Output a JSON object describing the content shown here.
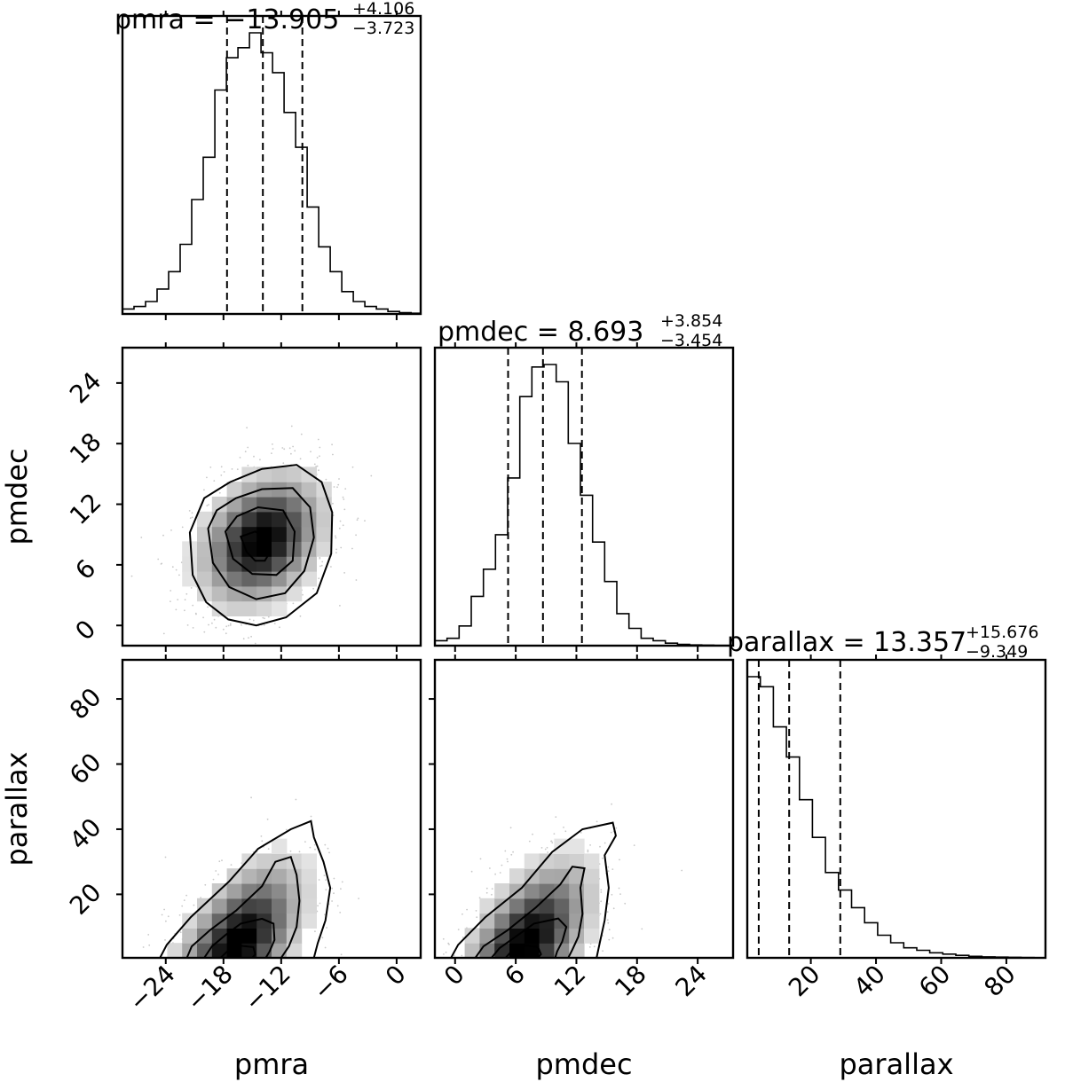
{
  "chart_data": {
    "type": "corner",
    "parameters": [
      "pmra",
      "pmdec",
      "parallax"
    ],
    "axis_labels": {
      "pmra": "pmra",
      "pmdec": "pmdec",
      "parallax": "parallax"
    },
    "ranges": {
      "pmra": [
        -28.5,
        2.5
      ],
      "pmdec": [
        -2.0,
        27.5
      ],
      "parallax": [
        0.5,
        92.0
      ]
    },
    "ticks": {
      "pmra": [
        -24,
        -18,
        -12,
        -6,
        0
      ],
      "pmdec": [
        0,
        6,
        12,
        18,
        24
      ],
      "parallax_x": [
        20,
        40,
        60,
        80
      ],
      "parallax_y": [
        20,
        40,
        60,
        80
      ]
    },
    "tick_labels": {
      "pmra": [
        "−24",
        "−18",
        "−12",
        "−6",
        "0"
      ],
      "pmdec": [
        "0",
        "6",
        "12",
        "18",
        "24"
      ],
      "parallax": [
        "20",
        "40",
        "60",
        "80"
      ]
    },
    "titles": {
      "pmra": {
        "main": "pmra = −13.905",
        "plus": "+4.106",
        "minus": "−3.723"
      },
      "pmdec": {
        "main": "pmdec = 8.693",
        "plus": "+3.854",
        "minus": "−3.454"
      },
      "parallax": {
        "main": "parallax = 13.357",
        "plus": "+15.676",
        "minus": "−9.349"
      }
    },
    "quantiles": {
      "pmra": [
        -17.628,
        -13.905,
        -9.799
      ],
      "pmdec": [
        5.239,
        8.693,
        12.547
      ],
      "parallax": [
        4.008,
        13.357,
        29.033
      ]
    },
    "histograms": {
      "pmra": {
        "edges": [
          -28.5,
          -27.3,
          -26.1,
          -24.9,
          -23.7,
          -22.5,
          -21.3,
          -20.1,
          -18.9,
          -17.7,
          -16.5,
          -15.3,
          -14.1,
          -12.9,
          -11.7,
          -10.5,
          -9.3,
          -8.1,
          -6.9,
          -5.7,
          -4.5,
          -3.3,
          -2.1,
          -0.9,
          0.3,
          1.5,
          2.5
        ],
        "counts": [
          2,
          3,
          5,
          10,
          17,
          28,
          46,
          63,
          90,
          103,
          107,
          113,
          105,
          97,
          81,
          67,
          43,
          27,
          17,
          9,
          5,
          3,
          2,
          1,
          0.5,
          0.3
        ]
      },
      "pmdec": {
        "edges": [
          -2.0,
          -0.8,
          0.4,
          1.6,
          2.8,
          4.0,
          5.2,
          6.4,
          7.6,
          8.8,
          10.0,
          11.2,
          12.4,
          13.6,
          14.8,
          16.0,
          17.2,
          18.4,
          19.6,
          20.8,
          22.0,
          23.2,
          24.4,
          25.6,
          27.5
        ],
        "counts": [
          2,
          3,
          8,
          20,
          31,
          45,
          68,
          101,
          113,
          114,
          107,
          82,
          61,
          42,
          26,
          13,
          7,
          3,
          2,
          1,
          0.5,
          0.3,
          0.2,
          0.1
        ]
      },
      "parallax": {
        "edges": [
          0.5,
          4.5,
          8.5,
          12.5,
          16.5,
          20.5,
          24.5,
          28.5,
          32.5,
          36.5,
          40.5,
          44.5,
          48.5,
          52.5,
          56.5,
          60.5,
          64.5,
          68.5,
          72.5,
          76.5,
          80.5,
          84.5,
          88.5,
          92.0
        ],
        "counts": [
          112,
          108,
          92,
          80,
          63,
          48,
          34,
          27,
          20,
          14,
          9,
          6,
          4,
          3,
          2,
          1.5,
          1,
          0.6,
          0.4,
          0.3,
          0.2,
          0.1,
          0.05
        ]
      }
    },
    "density_panels": [
      {
        "x": "pmra",
        "y": "pmdec",
        "center": [
          -14.0,
          8.5
        ],
        "sigma": [
          3.6,
          3.7
        ],
        "rho": 0.3,
        "contours": [
          [
            [
              -21.5,
              9.2
            ],
            [
              -21.2,
              5.0
            ],
            [
              -19.8,
              2.3
            ],
            [
              -17.5,
              0.6
            ],
            [
              -14.6,
              0.0
            ],
            [
              -11.5,
              0.8
            ],
            [
              -8.3,
              3.2
            ],
            [
              -6.8,
              7.1
            ],
            [
              -6.7,
              11.2
            ],
            [
              -7.8,
              14.2
            ],
            [
              -10.4,
              15.9
            ],
            [
              -14.0,
              15.5
            ],
            [
              -17.3,
              14.2
            ],
            [
              -20.0,
              12.6
            ],
            [
              -21.5,
              9.2
            ]
          ],
          [
            [
              -19.6,
              9.6
            ],
            [
              -19.1,
              6.2
            ],
            [
              -17.4,
              3.8
            ],
            [
              -14.6,
              2.6
            ],
            [
              -11.6,
              3.2
            ],
            [
              -9.6,
              5.4
            ],
            [
              -8.6,
              8.7
            ],
            [
              -9.0,
              11.7
            ],
            [
              -10.8,
              13.6
            ],
            [
              -14.0,
              13.5
            ],
            [
              -16.7,
              12.6
            ],
            [
              -18.7,
              11.4
            ],
            [
              -19.6,
              9.6
            ]
          ],
          [
            [
              -17.8,
              9.3
            ],
            [
              -17.0,
              6.6
            ],
            [
              -15.0,
              5.1
            ],
            [
              -12.5,
              5.0
            ],
            [
              -10.8,
              6.4
            ],
            [
              -10.6,
              9.3
            ],
            [
              -11.8,
              11.4
            ],
            [
              -14.4,
              11.7
            ],
            [
              -16.6,
              10.8
            ],
            [
              -17.8,
              9.3
            ]
          ],
          [
            [
              -16.2,
              8.8
            ],
            [
              -15.6,
              7.3
            ],
            [
              -14.7,
              6.4
            ],
            [
              -13.7,
              6.4
            ],
            [
              -13.2,
              7.2
            ],
            [
              -13.5,
              8.6
            ],
            [
              -14.7,
              9.3
            ],
            [
              -16.2,
              8.8
            ]
          ]
        ]
      },
      {
        "x": "pmra",
        "y": "parallax",
        "center": [
          -16.5,
          5.0
        ],
        "sigma": [
          3.8,
          14.0
        ],
        "rho": 0.55,
        "contours": [
          [
            [
              -24.6,
              0.5
            ],
            [
              -23.9,
              4.5
            ],
            [
              -21.4,
              13.0
            ],
            [
              -17.4,
              24.0
            ],
            [
              -14.4,
              34.0
            ],
            [
              -11.0,
              40.0
            ],
            [
              -8.9,
              42.5
            ],
            [
              -8.6,
              37.5
            ],
            [
              -7.6,
              30.0
            ],
            [
              -6.9,
              22.0
            ],
            [
              -7.4,
              12.0
            ],
            [
              -8.2,
              5.0
            ],
            [
              -8.6,
              0.5
            ]
          ],
          [
            [
              -21.8,
              0.5
            ],
            [
              -21.3,
              4.0
            ],
            [
              -19.4,
              9.0
            ],
            [
              -16.7,
              15.0
            ],
            [
              -14.0,
              22.5
            ],
            [
              -12.6,
              30.0
            ],
            [
              -11.0,
              31.5
            ],
            [
              -10.4,
              26.0
            ],
            [
              -10.1,
              18.0
            ],
            [
              -10.4,
              10.0
            ],
            [
              -11.2,
              4.0
            ],
            [
              -12.0,
              0.5
            ]
          ],
          [
            [
              -20.0,
              0.5
            ],
            [
              -19.2,
              4.0
            ],
            [
              -17.8,
              7.5
            ],
            [
              -16.2,
              11.0
            ],
            [
              -14.0,
              12.5
            ],
            [
              -12.8,
              11.0
            ],
            [
              -12.7,
              6.0
            ],
            [
              -13.2,
              2.5
            ],
            [
              -13.6,
              0.5
            ]
          ],
          [
            [
              -18.3,
              0.5
            ],
            [
              -17.6,
              2.5
            ],
            [
              -16.2,
              4.2
            ],
            [
              -14.9,
              3.8
            ],
            [
              -14.7,
              1.6
            ],
            [
              -15.0,
              0.5
            ]
          ]
        ]
      },
      {
        "x": "pmdec",
        "y": "parallax",
        "center": [
          7.0,
          5.0
        ],
        "sigma": [
          3.6,
          14.0
        ],
        "rho": 0.55,
        "contours": [
          [
            [
              -0.4,
              0.5
            ],
            [
              0.3,
              4.5
            ],
            [
              3.0,
              13.0
            ],
            [
              6.6,
              22.0
            ],
            [
              9.6,
              33.0
            ],
            [
              12.6,
              40.0
            ],
            [
              15.6,
              42.0
            ],
            [
              15.9,
              38.0
            ],
            [
              14.8,
              32.0
            ],
            [
              15.2,
              22.0
            ],
            [
              14.8,
              12.0
            ],
            [
              14.3,
              5.0
            ],
            [
              14.0,
              0.5
            ]
          ],
          [
            [
              2.0,
              0.5
            ],
            [
              2.8,
              4.0
            ],
            [
              5.2,
              9.0
            ],
            [
              8.0,
              16.0
            ],
            [
              10.4,
              23.0
            ],
            [
              11.6,
              28.5
            ],
            [
              12.8,
              28.0
            ],
            [
              12.4,
              22.0
            ],
            [
              12.6,
              14.0
            ],
            [
              12.2,
              7.0
            ],
            [
              11.6,
              3.0
            ],
            [
              11.2,
              0.5
            ]
          ],
          [
            [
              3.6,
              0.5
            ],
            [
              4.4,
              3.5
            ],
            [
              6.0,
              7.0
            ],
            [
              7.8,
              11.0
            ],
            [
              10.2,
              12.6
            ],
            [
              11.0,
              10.0
            ],
            [
              10.6,
              5.5
            ],
            [
              10.1,
              2.5
            ],
            [
              9.9,
              0.5
            ]
          ],
          [
            [
              5.0,
              0.5
            ],
            [
              5.6,
              2.6
            ],
            [
              7.0,
              4.3
            ],
            [
              8.2,
              3.8
            ],
            [
              8.5,
              1.6
            ],
            [
              8.2,
              0.5
            ]
          ]
        ]
      }
    ]
  }
}
